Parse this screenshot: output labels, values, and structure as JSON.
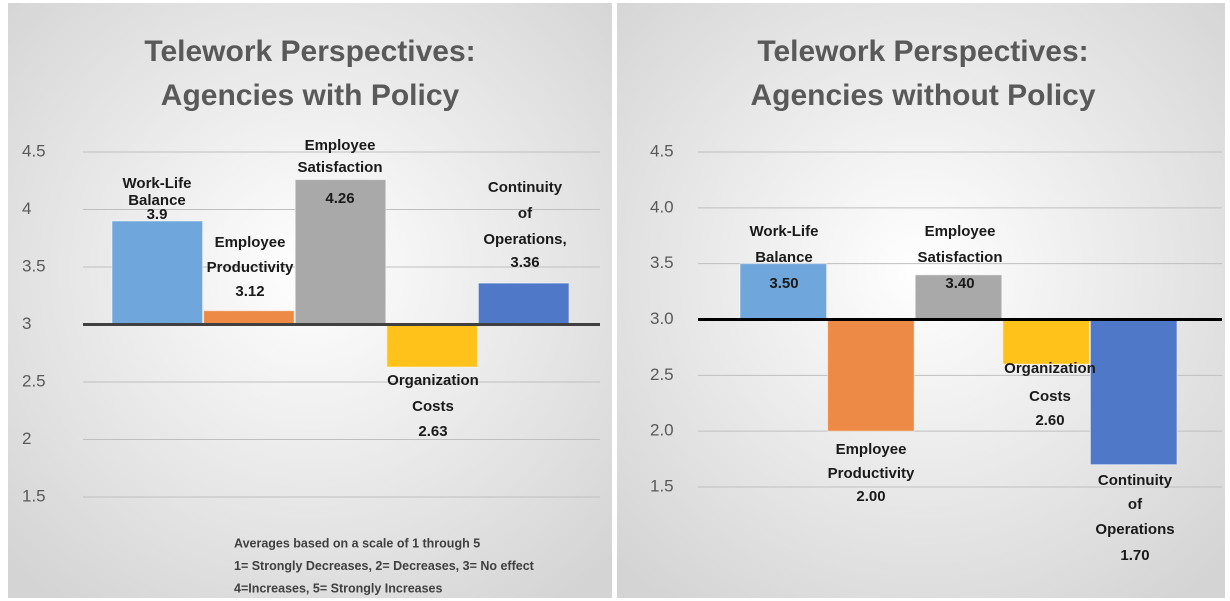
{
  "chart_data": [
    {
      "type": "bar",
      "title": "Telework Perspectives: Agencies with Policy",
      "categories": [
        "Work-Life Balance",
        "Employee Productivity",
        "Employee Satisfaction",
        "Organization Costs",
        "Continuity of Operations,"
      ],
      "values": [
        3.9,
        3.12,
        4.26,
        2.63,
        3.36
      ],
      "colors": [
        "#6fa6dc",
        "#ed8a45",
        "#a9a9a9",
        "#ffc21a",
        "#4f79c8"
      ],
      "ylim": [
        1.5,
        4.5
      ],
      "yticks": [
        1.5,
        2,
        2.5,
        3,
        3.5,
        4,
        4.5
      ],
      "grid": true,
      "axis_crosses": 3,
      "annotations": [
        "Averages based on a scale of 1 through 5",
        "1= Strongly Decreases, 2= Decreases, 3= No effect",
        "4=Increases, 5= Strongly Increases"
      ]
    },
    {
      "type": "bar",
      "title": "Telework Perspectives: Agencies without Policy",
      "categories": [
        "Work-Life Balance",
        "Employee Productivity",
        "Employee Satisfaction",
        "Organization Costs",
        "Continuity of Operations"
      ],
      "values": [
        3.5,
        2.0,
        3.4,
        2.6,
        1.7
      ],
      "value_labels": [
        "3.50",
        "2.00",
        "3.40",
        "2.60",
        "1.70"
      ],
      "colors": [
        "#6fa6dc",
        "#ed8a45",
        "#a9a9a9",
        "#ffc21a",
        "#4f79c8"
      ],
      "ylim": [
        1.5,
        4.5
      ],
      "yticks": [
        1.5,
        {
          "value": 2,
          "label": "2.0"
        },
        2.5,
        {
          "value": 3,
          "label": "3.0"
        },
        3.5,
        {
          "value": 4,
          "label": "4.0"
        },
        4.5
      ],
      "grid": true,
      "axis_crosses": 3
    }
  ]
}
